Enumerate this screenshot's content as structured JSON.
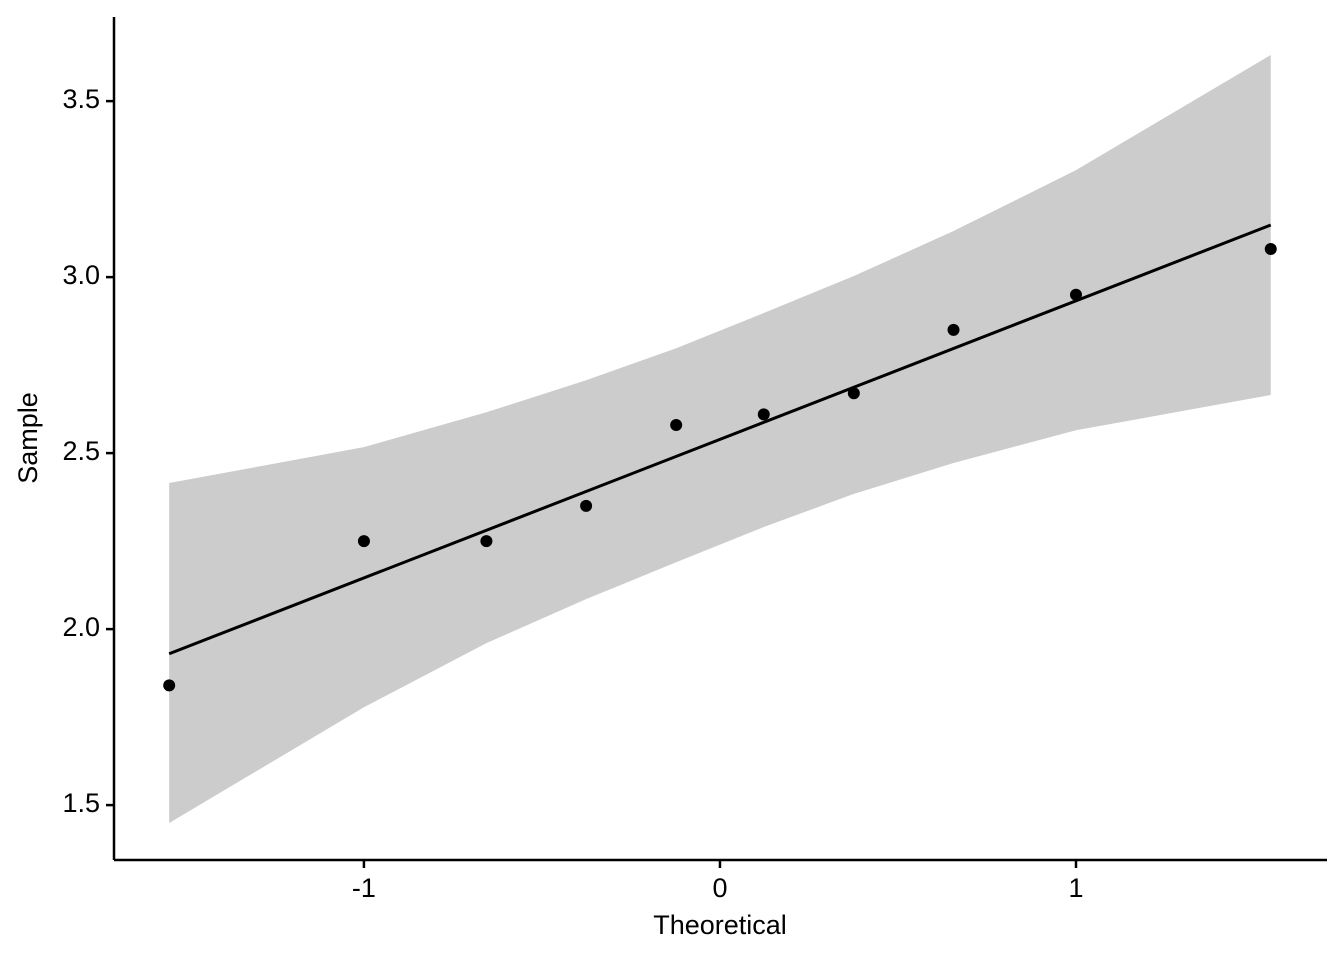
{
  "chart_data": {
    "type": "scatter",
    "x_label": "Theoretical",
    "y_label": "Sample",
    "x": [
      -1.547,
      -1.0,
      -0.656,
      -0.376,
      -0.123,
      0.123,
      0.376,
      0.656,
      1.0,
      1.547
    ],
    "values": [
      1.84,
      2.25,
      2.25,
      2.35,
      2.58,
      2.61,
      2.67,
      2.85,
      2.95,
      3.08
    ],
    "color": "#000000",
    "line": {
      "x": [
        -1.547,
        1.547
      ],
      "values": [
        1.93,
        3.148
      ],
      "color": "#000000"
    },
    "band": {
      "upper": [
        2.415,
        2.517,
        2.616,
        2.707,
        2.798,
        2.898,
        3.003,
        3.131,
        3.304,
        3.631
      ],
      "lower": [
        1.449,
        1.778,
        1.96,
        2.085,
        2.19,
        2.29,
        2.384,
        2.472,
        2.565,
        2.665
      ],
      "color": "#cccccc"
    },
    "xlim": [
      -1.702,
      1.705
    ],
    "ylim": [
      1.344,
      3.739
    ],
    "xticks": [
      -1,
      0,
      1
    ],
    "yticks": [
      1.5,
      {
        "value": 2.0,
        "label": "2.0"
      },
      2.5,
      {
        "value": 3.0,
        "label": "3.0"
      },
      3.5
    ],
    "grid": false
  }
}
